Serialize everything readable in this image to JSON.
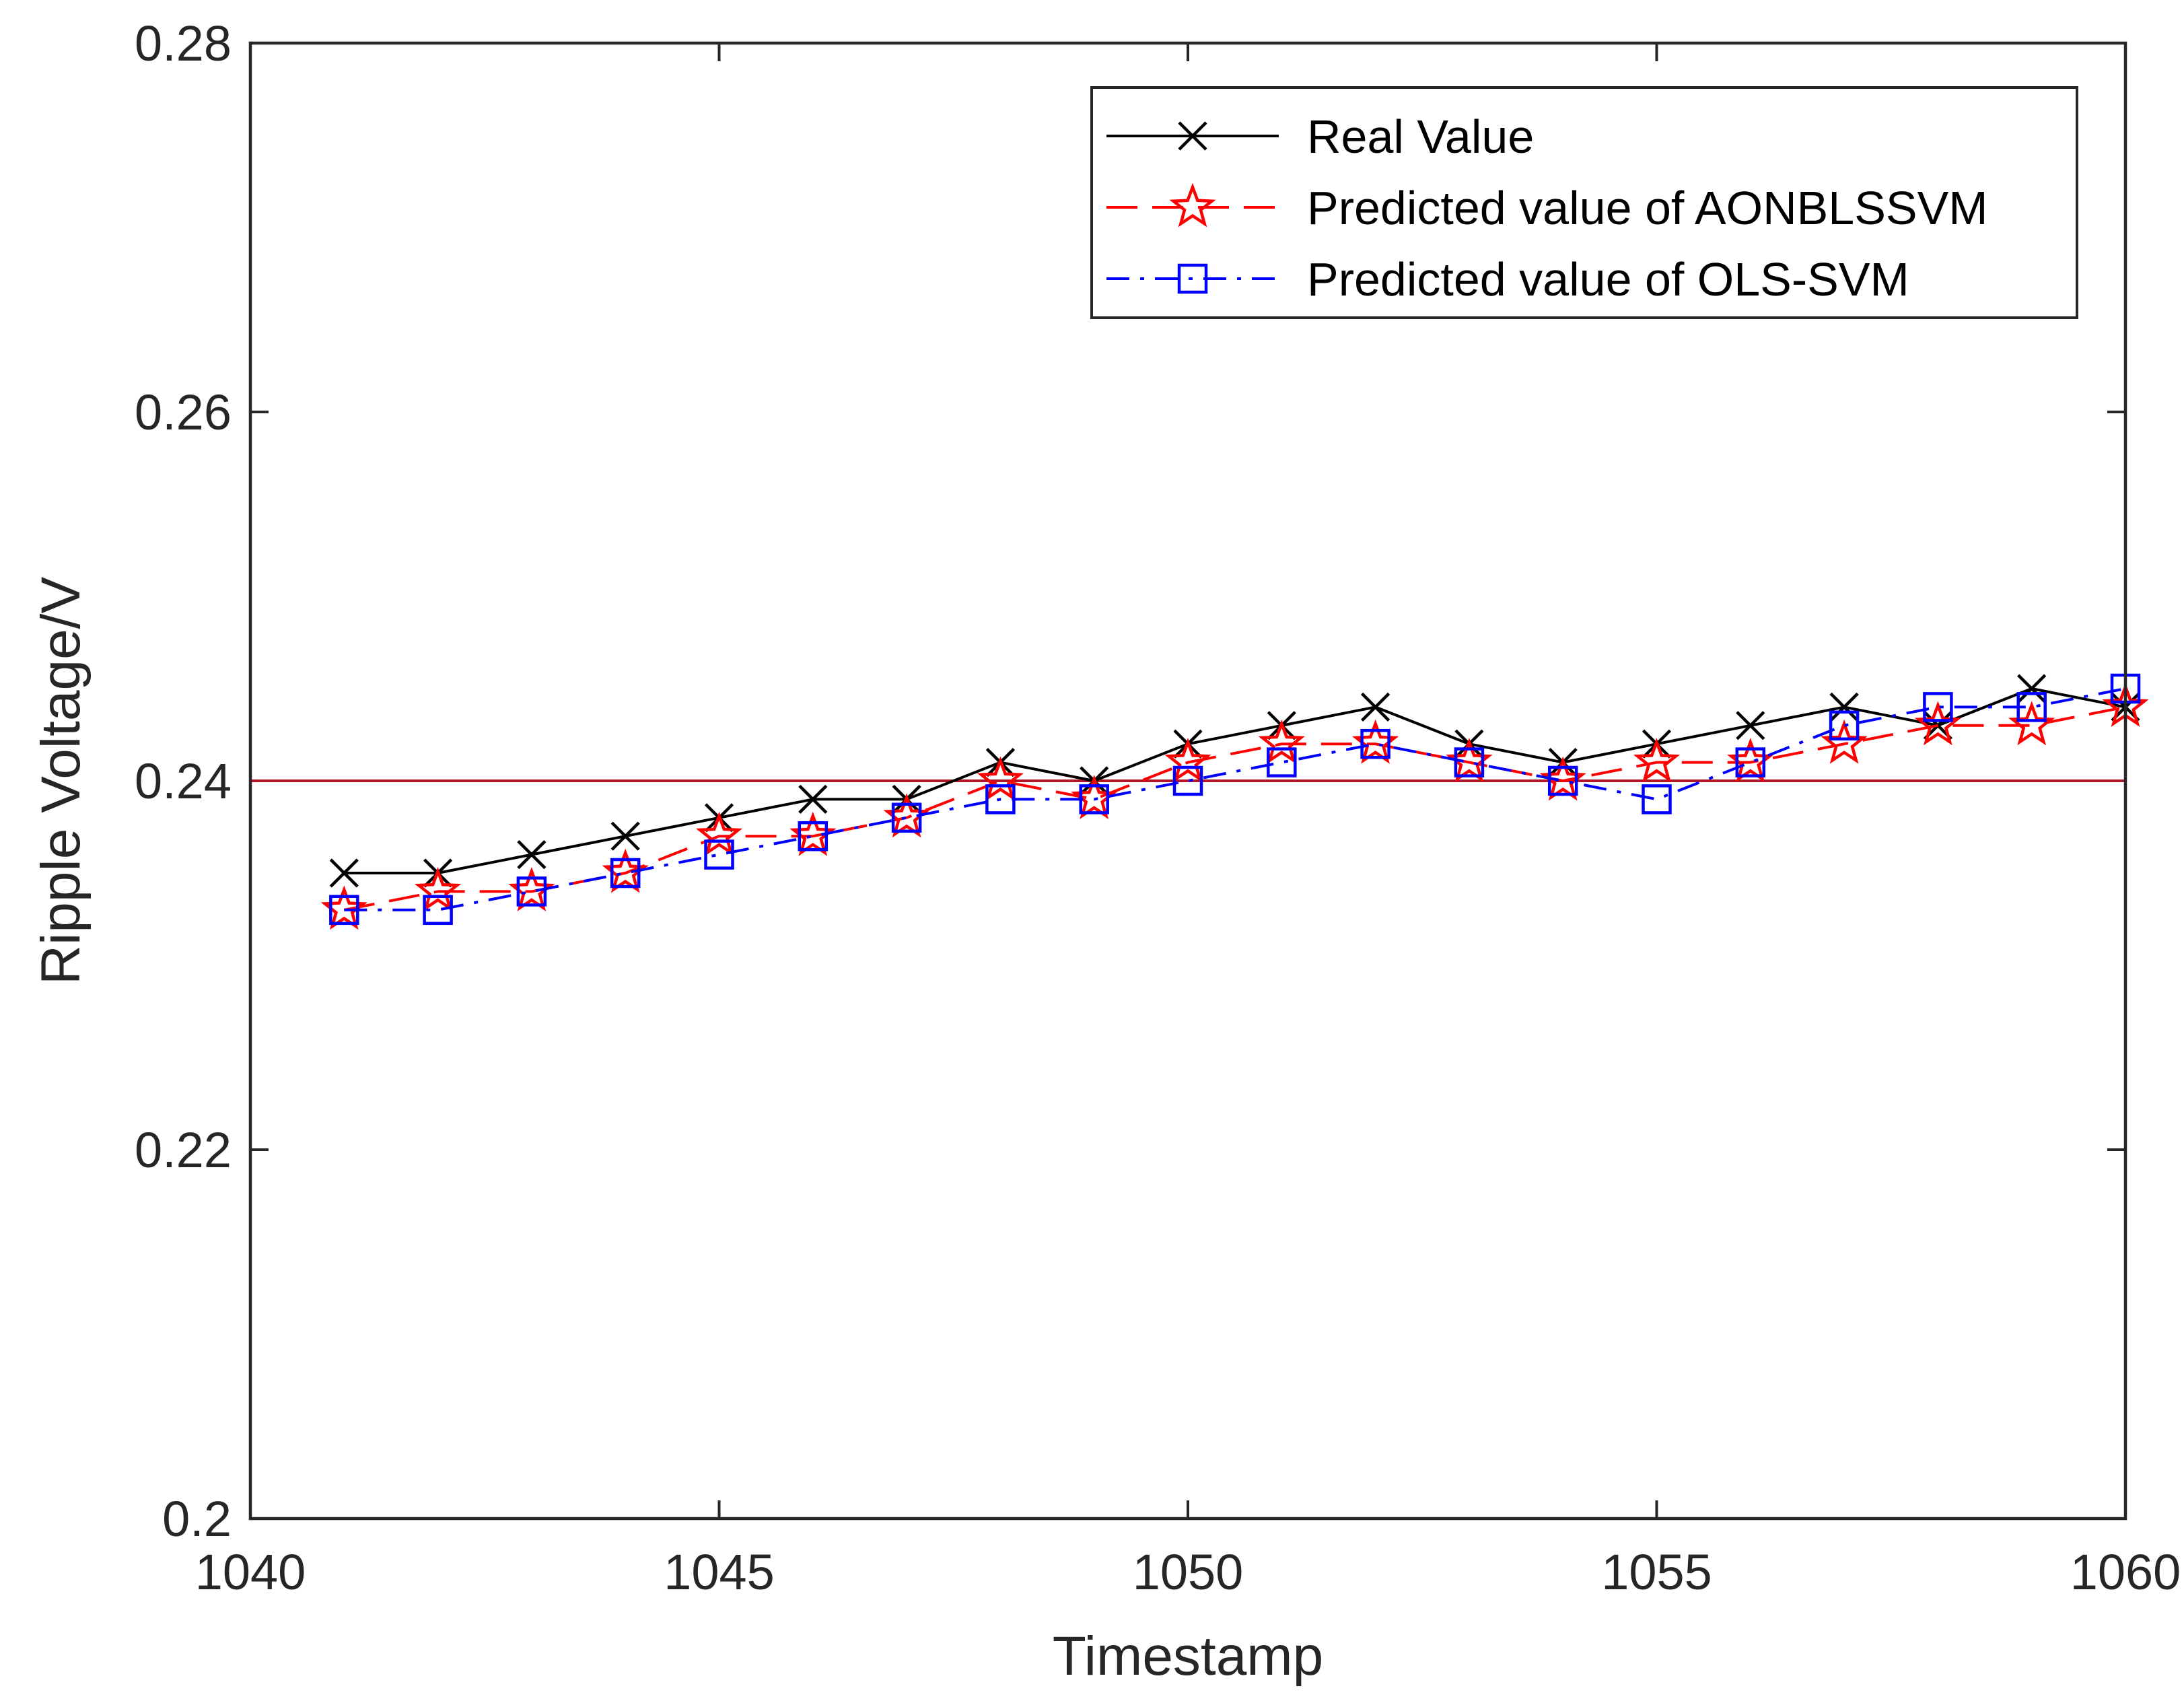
{
  "chart_data": {
    "type": "line",
    "title": "",
    "xlabel": "Timestamp",
    "ylabel": "Ripple Voltage/V",
    "xlim": [
      1040,
      1060
    ],
    "ylim": [
      0.2,
      0.28
    ],
    "xticks": [
      1040,
      1045,
      1050,
      1055,
      1060
    ],
    "xtick_labels": [
      "1040",
      "1045",
      "1050",
      "1055",
      "1060"
    ],
    "yticks": [
      0.2,
      0.22,
      0.24,
      0.26,
      0.28
    ],
    "ytick_labels": [
      "0.2",
      "0.22",
      "0.24",
      "0.26",
      "0.28"
    ],
    "grid": false,
    "legend_position": "top-right",
    "reference_line": {
      "y": 0.24,
      "color": "#b0182a"
    },
    "x": [
      1041,
      1042,
      1043,
      1044,
      1045,
      1046,
      1047,
      1048,
      1049,
      1050,
      1051,
      1052,
      1053,
      1054,
      1055,
      1056,
      1057,
      1058,
      1059,
      1060
    ],
    "series": [
      {
        "name": "Real Value",
        "color": "#000000",
        "line_style": "solid",
        "marker": "x",
        "values": [
          0.235,
          0.235,
          0.236,
          0.237,
          0.238,
          0.239,
          0.239,
          0.241,
          0.24,
          0.242,
          0.243,
          0.244,
          0.242,
          0.241,
          0.242,
          0.243,
          0.244,
          0.243,
          0.245,
          0.244
        ]
      },
      {
        "name": "Predicted value of AONBLSSVM",
        "color": "#ff0000",
        "line_style": "dashed",
        "marker": "star",
        "values": [
          0.233,
          0.234,
          0.234,
          0.235,
          0.237,
          0.237,
          0.238,
          0.24,
          0.239,
          0.241,
          0.242,
          0.242,
          0.241,
          0.24,
          0.241,
          0.241,
          0.242,
          0.243,
          0.243,
          0.244
        ]
      },
      {
        "name": "Predicted value of OLS-SVM",
        "color": "#0000ff",
        "line_style": "dashdot",
        "marker": "square",
        "values": [
          0.233,
          0.233,
          0.234,
          0.235,
          0.236,
          0.237,
          0.238,
          0.239,
          0.239,
          0.24,
          0.241,
          0.242,
          0.241,
          0.24,
          0.239,
          0.241,
          0.243,
          0.244,
          0.244,
          0.245
        ]
      }
    ]
  }
}
